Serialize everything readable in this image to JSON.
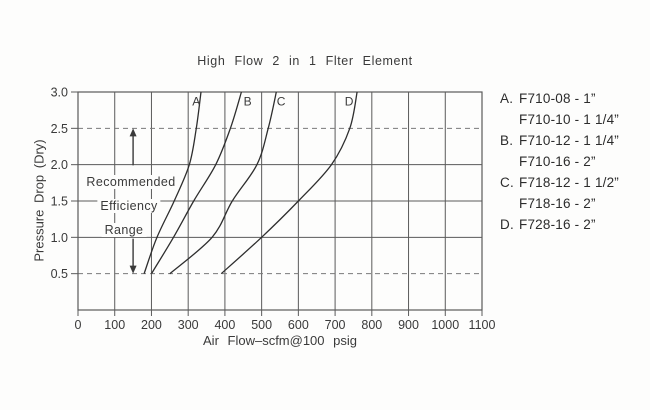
{
  "chart_data": {
    "type": "line",
    "title": "High Flow 2 in 1 Flter Element",
    "xlabel": "Air Flow–scfm@100 psig",
    "ylabel": "Pressure Drop (Dry)",
    "xlim": [
      0,
      1100
    ],
    "ylim": [
      0,
      3.0
    ],
    "x_ticks": [
      0,
      100,
      200,
      300,
      400,
      500,
      600,
      700,
      800,
      900,
      1000,
      1100
    ],
    "y_ticks": [
      0.5,
      1.0,
      1.5,
      2.0,
      2.5,
      3.0
    ],
    "solid_hlines": [
      1.0,
      1.5,
      2.0
    ],
    "dashed_hlines": [
      0.5,
      2.5
    ],
    "grid": true,
    "legend_position": "right",
    "series": [
      {
        "name": "A",
        "points": [
          [
            180,
            0.5
          ],
          [
            215,
            1.0
          ],
          [
            262,
            1.5
          ],
          [
            303,
            2.0
          ],
          [
            322,
            2.5
          ],
          [
            335,
            3.0
          ]
        ],
        "label_at": [
          322,
          2.87
        ]
      },
      {
        "name": "B",
        "points": [
          [
            200,
            0.5
          ],
          [
            260,
            1.0
          ],
          [
            315,
            1.5
          ],
          [
            375,
            2.0
          ],
          [
            415,
            2.5
          ],
          [
            445,
            3.0
          ]
        ],
        "label_at": [
          462,
          2.87
        ]
      },
      {
        "name": "C",
        "points": [
          [
            250,
            0.5
          ],
          [
            365,
            1.0
          ],
          [
            420,
            1.5
          ],
          [
            487,
            2.0
          ],
          [
            518,
            2.5
          ],
          [
            540,
            3.0
          ]
        ],
        "label_at": [
          553,
          2.87
        ]
      },
      {
        "name": "D",
        "points": [
          [
            390,
            0.5
          ],
          [
            500,
            1.0
          ],
          [
            600,
            1.5
          ],
          [
            690,
            2.0
          ],
          [
            740,
            2.5
          ],
          [
            760,
            3.0
          ]
        ],
        "label_at": [
          738,
          2.87
        ]
      }
    ],
    "annotation": {
      "lines": [
        "Recommended",
        "Efficiency",
        "Range"
      ],
      "arrow_x": 150,
      "arrow_span": [
        0.5,
        2.5
      ]
    }
  },
  "legend": {
    "items": [
      {
        "prefix": "A.",
        "text": "F710-08 - 1”"
      },
      {
        "prefix": "",
        "text": "F710-10 - 1 1/4”"
      },
      {
        "prefix": "B.",
        "text": "F710-12 - 1 1/4”"
      },
      {
        "prefix": "",
        "text": "F710-16 - 2”"
      },
      {
        "prefix": "C.",
        "text": "F718-12 - 1 1/2”"
      },
      {
        "prefix": "",
        "text": "F718-16 - 2”"
      },
      {
        "prefix": "D.",
        "text": "F728-16 - 2”"
      }
    ]
  },
  "colors": {
    "ink": "#3a3a3a",
    "grid": "#5a5a5a",
    "dashed": "#7a7a7a",
    "curve": "#2e2e2e",
    "background": "#fdfdfc"
  }
}
